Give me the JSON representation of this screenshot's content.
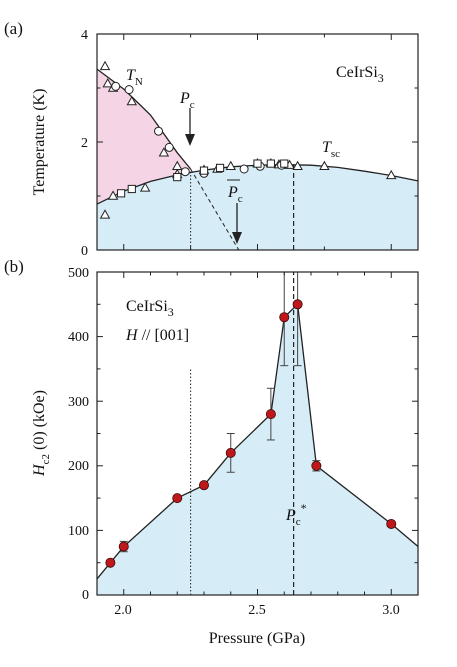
{
  "chart_data": [
    {
      "type": "scatter",
      "panel_label": "(a)",
      "ylabel": "Temperature (K)",
      "xlim": [
        1.9,
        3.1
      ],
      "ylim": [
        0,
        4
      ],
      "yticks": [
        "0",
        "2",
        "4"
      ],
      "compound": {
        "base": "CeIrSi",
        "sub": "3"
      },
      "annotations": {
        "tn": {
          "base": "T",
          "sub": "N"
        },
        "tsc": {
          "base": "T",
          "sub": "sc"
        },
        "pc": {
          "base": "P",
          "sub": "c"
        },
        "pc_bar": {
          "base": "P",
          "sub": "c"
        }
      },
      "regions": {
        "afm_color": "#f5d5e5",
        "sc_color": "#d6ecf7"
      },
      "series": [
        {
          "marker": "triangle",
          "x": [
            1.93,
            1.94,
            1.96,
            2.03,
            2.15,
            2.2,
            2.3,
            2.35,
            2.4,
            2.5,
            2.55,
            2.58,
            2.62,
            2.65,
            2.75,
            3.0
          ],
          "y": [
            3.4,
            3.08,
            3.0,
            2.75,
            1.8,
            1.55,
            1.48,
            1.5,
            1.55,
            1.6,
            1.6,
            1.58,
            1.57,
            1.55,
            1.55,
            1.38
          ]
        },
        {
          "marker": "triangle",
          "x": [
            1.93,
            1.96,
            2.08,
            2.2
          ],
          "y": [
            0.65,
            1.0,
            1.15,
            1.4
          ]
        },
        {
          "marker": "circle",
          "x": [
            1.97,
            2.02,
            2.13,
            2.17,
            2.23,
            2.3,
            2.45,
            2.51,
            2.59
          ],
          "y": [
            3.03,
            2.97,
            2.2,
            1.9,
            1.45,
            1.42,
            1.5,
            1.55,
            1.57
          ]
        },
        {
          "marker": "square",
          "x": [
            1.99,
            2.03,
            2.2,
            2.3,
            2.36,
            2.5,
            2.55,
            2.6
          ],
          "y": [
            1.05,
            1.13,
            1.35,
            1.47,
            1.52,
            1.6,
            1.6,
            1.6
          ]
        }
      ],
      "lines": {
        "tn_curve": {
          "x": [
            1.9,
            2.0,
            2.1,
            2.15,
            2.2,
            2.25
          ],
          "y": [
            3.35,
            2.98,
            2.5,
            2.15,
            1.8,
            1.5
          ]
        },
        "tsc_curve": {
          "x": [
            1.9,
            2.0,
            2.1,
            2.2,
            2.3,
            2.4,
            2.5,
            2.6,
            2.7,
            2.8,
            2.9,
            3.0,
            3.1
          ],
          "y": [
            0.85,
            1.09,
            1.27,
            1.39,
            1.48,
            1.54,
            1.57,
            1.58,
            1.57,
            1.53,
            1.46,
            1.38,
            1.28
          ]
        },
        "tn_extrapolation": {
          "x": [
            2.25,
            2.43
          ],
          "y": [
            1.5,
            0
          ]
        }
      },
      "vlines": [
        {
          "x": 2.25,
          "style": "dotted",
          "ymax": 1.5
        },
        {
          "x": 2.635,
          "style": "dashed",
          "ymax": 1.58
        }
      ]
    },
    {
      "type": "line",
      "panel_label": "(b)",
      "xlabel": "Pressure (GPa)",
      "ylabel": {
        "base": "H",
        "sub": "c2",
        "rest": "(0)  (kOe)"
      },
      "xlim": [
        1.9,
        3.1
      ],
      "ylim": [
        0,
        500
      ],
      "xticks": [
        "2.0",
        "2.5",
        "3.0"
      ],
      "yticks": [
        "0",
        "100",
        "200",
        "300",
        "400",
        "500"
      ],
      "compound": {
        "base": "CeIrSi",
        "sub": "3"
      },
      "field_label": {
        "base": "H",
        "rest": " // [001]"
      },
      "pc_star": {
        "base": "P",
        "sub": "c",
        "sup": "*"
      },
      "region_color": "#d6ecf7",
      "marker_color": "#c0171b",
      "series": [
        {
          "x": [
            1.95,
            2.0,
            2.2,
            2.3,
            2.4,
            2.55,
            2.6,
            2.65,
            2.72,
            3.0
          ],
          "y": [
            50,
            75,
            150,
            170,
            220,
            280,
            430,
            450,
            200,
            110
          ],
          "yerr": [
            0,
            8,
            0,
            0,
            30,
            40,
            75,
            95,
            8,
            0
          ]
        }
      ],
      "envelope": {
        "x": [
          1.9,
          1.95,
          2.0,
          2.2,
          2.3,
          2.4,
          2.55,
          2.6,
          2.65,
          2.72,
          3.0,
          3.1
        ],
        "y": [
          25,
          50,
          75,
          150,
          170,
          220,
          280,
          430,
          450,
          200,
          110,
          75
        ]
      },
      "vlines": [
        {
          "x": 2.25,
          "style": "dotted",
          "ymin": 0,
          "ymax": 350
        },
        {
          "x": 2.635,
          "style": "dashed",
          "ymin": 0,
          "ymax": 500
        }
      ]
    }
  ]
}
